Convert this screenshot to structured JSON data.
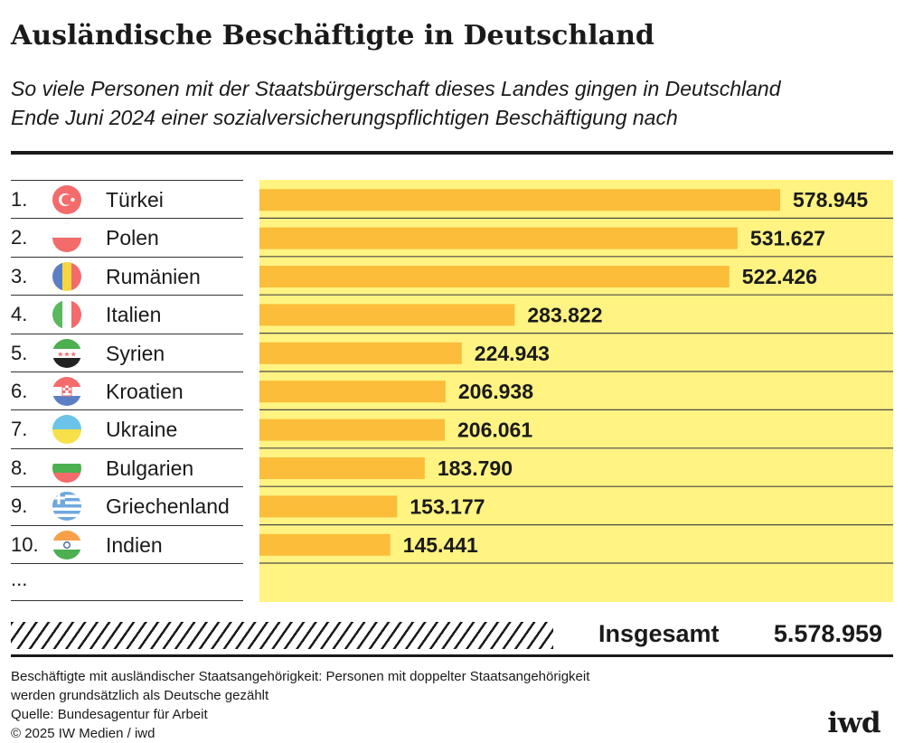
{
  "chart_data": {
    "type": "bar",
    "orientation": "horizontal",
    "title": "Ausländische Beschäftigte in Deutschland",
    "subtitle_lines": [
      "So viele Personen mit der Staatsbürgerschaft dieses Landes gingen in Deutschland",
      "Ende Juni 2024 einer sozialversicherungspflichtigen Beschäftigung nach"
    ],
    "ranks": [
      "1.",
      "2.",
      "3.",
      "4.",
      "5.",
      "6.",
      "7.",
      "8.",
      "9.",
      "10."
    ],
    "categories": [
      "Türkei",
      "Polen",
      "Rumänien",
      "Italien",
      "Syrien",
      "Kroatien",
      "Ukraine",
      "Bulgarien",
      "Griechenland",
      "Indien"
    ],
    "flag_icons": [
      "turkey-flag-icon",
      "poland-flag-icon",
      "romania-flag-icon",
      "italy-flag-icon",
      "syria-flag-icon",
      "croatia-flag-icon",
      "ukraine-flag-icon",
      "bulgaria-flag-icon",
      "greece-flag-icon",
      "india-flag-icon"
    ],
    "values": [
      578945,
      531627,
      522426,
      283822,
      224943,
      206938,
      206061,
      183790,
      153177,
      145441
    ],
    "value_labels": [
      "578.945",
      "531.627",
      "522.426",
      "283.822",
      "224.943",
      "206.938",
      "206.061",
      "183.790",
      "153.177",
      "145.441"
    ],
    "more_rows": "...",
    "total_label": "Insgesamt",
    "total_value": "5.578.959",
    "xlim": [
      0,
      700000
    ],
    "colors": {
      "bar": "#fbbd3a",
      "background": "#fff382",
      "text": "#1a1a1a"
    }
  },
  "footnote": {
    "lines": [
      "Beschäftigte mit ausländischer Staatsangehörigkeit: Personen mit doppelter Staatsangehörigkeit",
      "werden grundsätzlich als Deutsche gezählt",
      "Quelle: Bundesagentur für Arbeit",
      "© 2025 IW Medien / iwd"
    ]
  },
  "brand": {
    "logo": "iwd"
  }
}
